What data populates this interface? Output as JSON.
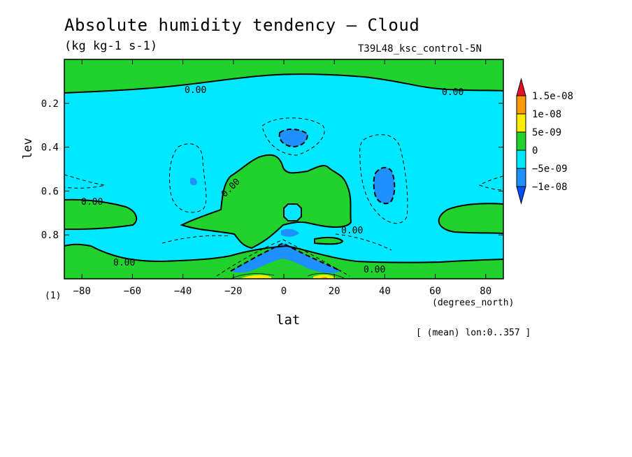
{
  "title": "Absolute humidity tendency — Cloud",
  "units": "(kg kg-1 s-1)",
  "run_id": "T39L48_ksc_control-5N",
  "y_note": "(1)",
  "mean_note": "[ (mean) lon:0..357 ]",
  "chart_data": {
    "type": "heatmap",
    "title": "Absolute humidity tendency — Cloud",
    "xlabel": "lat",
    "x_unit": "(degrees_north)",
    "ylabel": "lev",
    "xlim": [
      -87,
      87
    ],
    "ylim": [
      1.0,
      0.0
    ],
    "y_inverted": true,
    "x_ticks": [
      -80,
      -60,
      -40,
      -20,
      0,
      20,
      40,
      60,
      80
    ],
    "x_tick_labels": [
      "−80",
      "−60",
      "−40",
      "−20",
      "0",
      "20",
      "40",
      "60",
      "80"
    ],
    "y_ticks": [
      0.2,
      0.4,
      0.6,
      0.8
    ],
    "y_tick_labels": [
      "0.2",
      "0.4",
      "0.6",
      "0.8"
    ],
    "contour_labels": [
      "0.00",
      "0.00",
      "0.00",
      "0.00",
      "0.00",
      "0.00",
      "0.00"
    ],
    "colorbar": {
      "levels": [
        "1.5e-08",
        "1e-08",
        "5e-09",
        "0",
        "−5e-09",
        "−1e-08"
      ],
      "colors": {
        "above_1.5e-08": "#e8112a",
        "1e-08_to_1.5e-08": "#ff9a00",
        "5e-09_to_1e-08": "#ffee00",
        "0_to_5e-09": "#22d22c",
        "-5e-09_to_0": "#00e8ff",
        "-1e-08_to_-5e-09": "#1e90ff",
        "below_-1e-08": "#0050ff"
      }
    },
    "regions": [
      {
        "name": "upper-positive-band",
        "range": "0_to_5e-09",
        "lev_from": 0.0,
        "lev_to": 0.15
      },
      {
        "name": "mid-troposphere-negative",
        "range": "-5e-09_to_0"
      },
      {
        "name": "tropical-positive-core",
        "range": "0_to_5e-09",
        "lat": [
          -30,
          30
        ],
        "lev": [
          0.45,
          0.87
        ]
      },
      {
        "name": "surface-positive-band",
        "range": "0_to_5e-09",
        "lev_from": 0.85,
        "lev_to": 1.0
      },
      {
        "name": "minimum-nh-40",
        "range": "-1e-08_to_-5e-09",
        "lat": 40,
        "lev": 0.55
      },
      {
        "name": "minimum-eq-upper",
        "range": "-1e-08_to_-5e-09",
        "lat": 5,
        "lev": 0.35
      },
      {
        "name": "maxima-near-surface",
        "range": "5e-09_to_1e-08",
        "lat": [
          -15,
          15
        ],
        "lev": 0.98
      }
    ]
  }
}
